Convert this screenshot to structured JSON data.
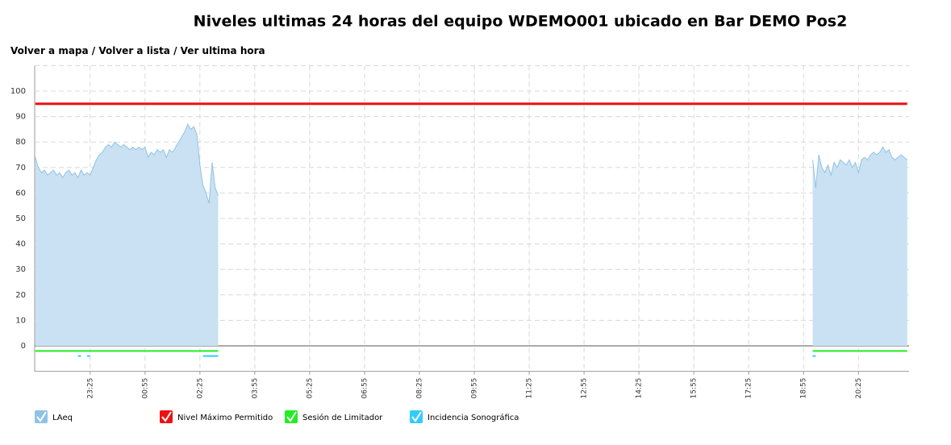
{
  "nav": {
    "links": [
      "Volver a mapa",
      "Volver a lista",
      "Ver ultima hora"
    ],
    "separator": "/"
  },
  "chart_data": {
    "type": "line",
    "title": "Niveles ultimas 24 horas del equipo WDEMO001 ubicado en Bar DEMO Pos2",
    "x": [
      "21:55",
      "22:00",
      "22:05",
      "22:10",
      "22:15",
      "22:20",
      "22:25",
      "22:30",
      "22:35",
      "22:40",
      "22:45",
      "22:50",
      "22:55",
      "23:00",
      "23:05",
      "23:10",
      "23:15",
      "23:20",
      "23:25",
      "23:30",
      "23:35",
      "23:40",
      "23:45",
      "23:50",
      "23:55",
      "00:00",
      "00:05",
      "00:10",
      "00:15",
      "00:20",
      "00:25",
      "00:30",
      "00:35",
      "00:40",
      "00:45",
      "00:50",
      "00:55",
      "01:00",
      "01:05",
      "01:10",
      "01:15",
      "01:20",
      "01:25",
      "01:30",
      "01:35",
      "01:40",
      "01:45",
      "01:50",
      "01:55",
      "02:00",
      "02:05",
      "02:10",
      "02:15",
      "02:20",
      "02:25",
      "02:30",
      "02:35",
      "02:40",
      "02:45",
      "02:50",
      "02:55",
      "03:00",
      "19:10",
      "19:15",
      "19:20",
      "19:25",
      "19:30",
      "19:35",
      "19:40",
      "19:45",
      "19:50",
      "19:55",
      "20:00",
      "20:05",
      "20:10",
      "20:15",
      "20:20",
      "20:25",
      "20:30",
      "20:35",
      "20:40",
      "20:45",
      "20:50",
      "20:55",
      "21:00",
      "21:05",
      "21:10",
      "21:15",
      "21:20",
      "21:25",
      "21:30",
      "21:35",
      "21:40",
      "21:45"
    ],
    "series": [
      {
        "name": "LAeq",
        "color": "#8fc3e6",
        "fill": "#c9e1f2",
        "area": true,
        "values": [
          74,
          70,
          68,
          69,
          67,
          68,
          69,
          67,
          68,
          66,
          68,
          69,
          67,
          68,
          66,
          69,
          67,
          68,
          67,
          70,
          73,
          75,
          76,
          78,
          79,
          78,
          80,
          79,
          78,
          79,
          78,
          77,
          78,
          77,
          78,
          77,
          78,
          74,
          76,
          75,
          77,
          76,
          77,
          74,
          77,
          76,
          78,
          80,
          82,
          84,
          87,
          85,
          86,
          83,
          71,
          63,
          60,
          56,
          72,
          62,
          59,
          null,
          73,
          62,
          75,
          70,
          68,
          71,
          67,
          72,
          70,
          73,
          72,
          71,
          73,
          70,
          72,
          68,
          73,
          74,
          73,
          75,
          76,
          75,
          76,
          78,
          76,
          77,
          74,
          73,
          74,
          75,
          74,
          73
        ]
      },
      {
        "name": "Nivel Máximo Permitido",
        "color": "#ee1111",
        "width": 3,
        "values": [
          95,
          95,
          95,
          95,
          95,
          95,
          95,
          95,
          95,
          95,
          95,
          95,
          95,
          95,
          95,
          95,
          95,
          95,
          95,
          95,
          95,
          95,
          95,
          95,
          95,
          95,
          95,
          95,
          95,
          95,
          95,
          95,
          95,
          95,
          95,
          95,
          95,
          95,
          95,
          95,
          95,
          95,
          95,
          95,
          95,
          95,
          95,
          95,
          95,
          95,
          95,
          95,
          95,
          95,
          95,
          95,
          95,
          95,
          95,
          95,
          95,
          95,
          95,
          95,
          95,
          95,
          95,
          95,
          95,
          95,
          95,
          95,
          95,
          95,
          95,
          95,
          95,
          95,
          95,
          95,
          95,
          95,
          95,
          95,
          95,
          95,
          95,
          95,
          95,
          95,
          95,
          95,
          95,
          95
        ]
      },
      {
        "name": "Sesión de Limitador",
        "color": "#22ee22",
        "width": 2,
        "values": [
          -2,
          -2,
          -2,
          -2,
          -2,
          -2,
          -2,
          -2,
          -2,
          -2,
          -2,
          -2,
          -2,
          -2,
          -2,
          -2,
          -2,
          -2,
          -2,
          -2,
          -2,
          -2,
          -2,
          -2,
          -2,
          -2,
          -2,
          -2,
          -2,
          -2,
          -2,
          -2,
          -2,
          -2,
          -2,
          -2,
          -2,
          -2,
          -2,
          -2,
          -2,
          -2,
          -2,
          -2,
          -2,
          -2,
          -2,
          -2,
          -2,
          -2,
          -2,
          -2,
          -2,
          -2,
          -2,
          -2,
          -2,
          -2,
          -2,
          -2,
          -2,
          null,
          -2,
          -2,
          -2,
          -2,
          -2,
          -2,
          -2,
          -2,
          -2,
          -2,
          -2,
          -2,
          -2,
          -2,
          -2,
          -2,
          -2,
          -2,
          -2,
          -2,
          -2,
          -2,
          -2,
          -2,
          -2,
          -2,
          -2,
          -2,
          -2,
          -2,
          -2,
          -2
        ]
      },
      {
        "name": "Incidencia Sonográfica",
        "color": "#33ccff",
        "width": 2,
        "values": [
          null,
          null,
          null,
          null,
          null,
          null,
          null,
          null,
          null,
          null,
          null,
          null,
          null,
          null,
          -4,
          -4,
          null,
          -4,
          -4,
          null,
          null,
          null,
          null,
          null,
          null,
          null,
          null,
          null,
          null,
          null,
          null,
          null,
          null,
          null,
          null,
          null,
          null,
          null,
          null,
          null,
          null,
          null,
          null,
          null,
          null,
          null,
          null,
          null,
          null,
          null,
          null,
          null,
          null,
          null,
          null,
          -4,
          -4,
          -4,
          -4,
          -4,
          -4,
          null,
          -4,
          -4,
          null,
          null,
          null,
          null,
          null,
          null,
          null,
          null,
          null,
          null,
          null,
          null,
          null,
          null,
          null,
          null,
          null,
          null,
          null,
          null,
          null,
          null,
          null,
          null,
          null,
          null,
          null,
          null,
          null,
          null
        ]
      }
    ],
    "xlim": [
      "21:54",
      "21:48"
    ],
    "xticks": [
      "23:25",
      "00:55",
      "02:25",
      "03:55",
      "05:25",
      "06:55",
      "08:25",
      "09:55",
      "11:25",
      "12:55",
      "14:25",
      "15:55",
      "17:25",
      "18:55",
      "20:25"
    ],
    "ylim": [
      -10,
      110
    ],
    "yticks": [
      0,
      10,
      20,
      30,
      40,
      50,
      60,
      70,
      80,
      90,
      100
    ],
    "grid": true,
    "legend": "bottom"
  }
}
